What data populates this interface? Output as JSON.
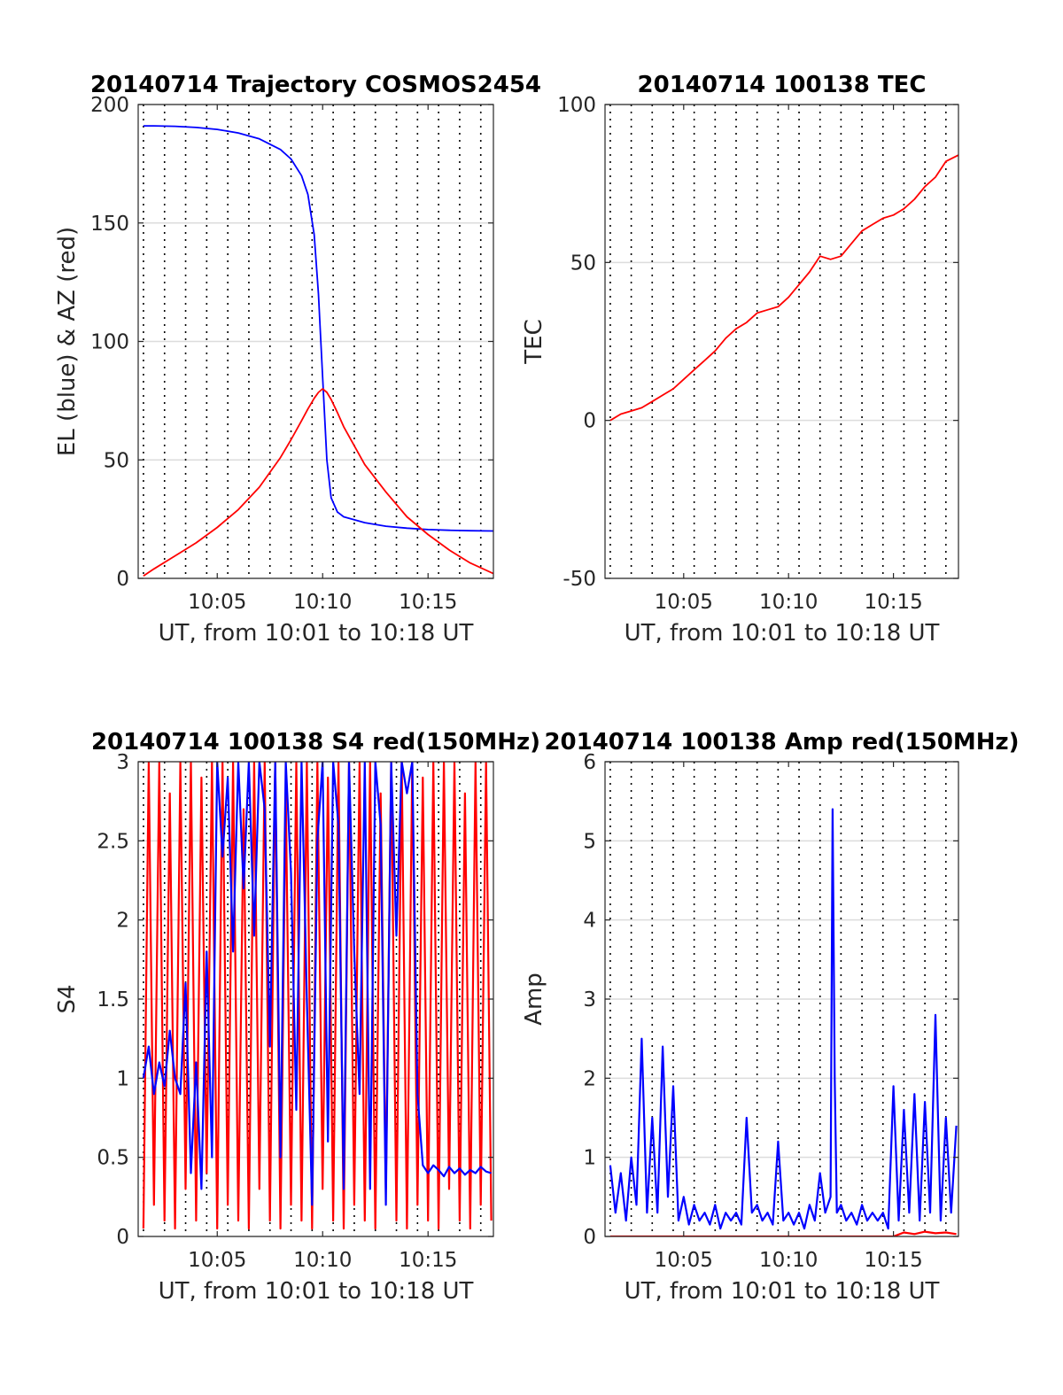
{
  "figure": {
    "xlabel": "UT, from 10:01 to 10:18 UT",
    "xticks": [
      5,
      10,
      15
    ],
    "xtick_labels": [
      "10:05",
      "10:10",
      "10:15"
    ],
    "xlim": [
      1.25,
      18.1
    ]
  },
  "panels": [
    {
      "id": "trajectory",
      "title": "20140714 Trajectory COSMOS2454",
      "ylabel": "EL (blue) & AZ (red)",
      "ylim": [
        0,
        200
      ],
      "yticks": [
        0,
        50,
        100,
        150,
        200
      ],
      "ytick_labels": [
        "0",
        "50",
        "100",
        "150",
        "200"
      ]
    },
    {
      "id": "tec",
      "title": "20140714 100138 TEC",
      "ylabel": "TEC",
      "ylim": [
        -50,
        100
      ],
      "yticks": [
        -50,
        0,
        50,
        100
      ],
      "ytick_labels": [
        "-50",
        "0",
        "50",
        "100"
      ]
    },
    {
      "id": "s4",
      "title": "20140714 100138 S4 red(150MHz)",
      "ylabel": "S4",
      "ylim": [
        0,
        3
      ],
      "yticks": [
        0,
        0.5,
        1,
        1.5,
        2,
        2.5,
        3
      ],
      "ytick_labels": [
        "0",
        "0.5",
        "1",
        "1.5",
        "2",
        "2.5",
        "3"
      ]
    },
    {
      "id": "amp",
      "title": "20140714 100138 Amp red(150MHz)",
      "ylabel": "Amp",
      "ylim": [
        0,
        6
      ],
      "yticks": [
        0,
        1,
        2,
        3,
        4,
        5,
        6
      ],
      "ytick_labels": [
        "0",
        "1",
        "2",
        "3",
        "4",
        "5",
        "6"
      ]
    }
  ],
  "chart_data": [
    {
      "type": "line",
      "title": "20140714 Trajectory COSMOS2454",
      "xlabel": "UT, from 10:01 to 10:18 UT",
      "ylabel": "EL (blue) & AZ (red)",
      "ylim": [
        0,
        200
      ],
      "grid": "vertical dotted + horizontal",
      "colors": {
        "EL": "#0000ff",
        "AZ": "#ff0000"
      },
      "x": [
        1.5,
        2,
        3,
        4,
        5,
        6,
        7,
        8,
        8.5,
        9,
        9.3,
        9.6,
        9.8,
        10,
        10.2,
        10.4,
        10.7,
        11,
        12,
        13,
        14,
        15,
        16,
        17,
        18.1
      ],
      "series": [
        {
          "values": [
            191,
            191,
            190.8,
            190.3,
            189.5,
            188,
            185.5,
            181,
            177,
            170,
            162,
            145,
            120,
            85,
            50,
            34,
            28,
            26,
            23.5,
            22,
            21.2,
            20.6,
            20.3,
            20.1,
            20
          ]
        },
        {
          "values": [
            1,
            4,
            9.5,
            15,
            21.5,
            29,
            38.5,
            51,
            58.5,
            66.5,
            71.5,
            76,
            78.5,
            80,
            78.5,
            75.5,
            70,
            64,
            48,
            36.5,
            26,
            18.5,
            12,
            6.5,
            2
          ]
        }
      ]
    },
    {
      "type": "line",
      "title": "20140714 100138 TEC",
      "xlabel": "UT, from 10:01 to 10:18 UT",
      "ylabel": "TEC",
      "ylim": [
        -50,
        100
      ],
      "grid": "vertical dotted + horizontal",
      "colors": {
        "TEC": "#ff0000"
      },
      "x": [
        1.5,
        2,
        2.5,
        3,
        3.5,
        4,
        4.5,
        5,
        5.5,
        6,
        6.5,
        7,
        7.5,
        8,
        8.5,
        9,
        9.5,
        10,
        10.5,
        11,
        11.5,
        12,
        12.5,
        13,
        13.5,
        14,
        14.5,
        15,
        15.5,
        16,
        16.5,
        17,
        17.5,
        18.1
      ],
      "series": [
        {
          "values": [
            0,
            2,
            3,
            4,
            6,
            8,
            10,
            13,
            16,
            19,
            22,
            26,
            29,
            31,
            34,
            35,
            36,
            39,
            43,
            47,
            52,
            51,
            52,
            56,
            60,
            62,
            64,
            65,
            67,
            70,
            74,
            77,
            82,
            84
          ]
        }
      ]
    },
    {
      "type": "line",
      "title": "20140714 100138 S4 red(150MHz)",
      "xlabel": "UT, from 10:01 to 10:18 UT",
      "ylabel": "S4",
      "ylim": [
        0,
        3
      ],
      "grid": "vertical dotted + horizontal",
      "colors": {
        "red": "#ff0000",
        "blue": "#0000ff"
      },
      "series": [
        {
          "x": [
            1.5,
            1.75,
            2.0,
            2.25,
            2.5,
            2.75,
            3.0,
            3.25,
            3.5,
            3.75,
            4.0,
            4.25,
            4.5,
            4.75,
            5.0,
            5.25,
            5.5,
            5.75,
            6.0,
            6.25,
            6.5,
            6.75,
            7.0,
            7.25,
            7.5,
            7.75,
            8.0,
            8.25,
            8.5,
            8.75,
            9.0,
            9.25,
            9.5,
            9.75,
            10.0,
            10.25,
            10.5,
            10.75,
            11.0,
            11.25,
            11.5,
            11.75,
            12.0,
            12.25,
            12.5,
            12.75,
            13.0,
            13.25,
            13.5,
            13.75,
            14.0,
            14.25,
            14.5,
            14.75,
            15.0,
            15.25,
            15.5,
            15.75,
            16.0,
            16.25,
            16.5,
            16.75,
            17.0,
            17.25,
            17.5,
            17.75,
            18.0
          ],
          "values": [
            0.05,
            3,
            0.2,
            3,
            0.1,
            2.8,
            0.05,
            3,
            0.3,
            3,
            0.1,
            2.9,
            0.4,
            3,
            0.05,
            3,
            0.2,
            3,
            0.1,
            2.7,
            0.05,
            3,
            0.3,
            3,
            0.1,
            3,
            0.05,
            2.8,
            0.2,
            3,
            0.1,
            3,
            0.05,
            3,
            0.3,
            2.9,
            0.1,
            3,
            0.05,
            3,
            0.2,
            3,
            0.1,
            3,
            0.05,
            2.8,
            0.3,
            3,
            0.1,
            3,
            0.05,
            3,
            0.2,
            2.9,
            0.1,
            3,
            0.05,
            3,
            0.3,
            3,
            0.1,
            2.8,
            0.05,
            3,
            0.2,
            3,
            0.1
          ]
        },
        {
          "x": [
            1.5,
            1.75,
            2.0,
            2.25,
            2.5,
            2.75,
            3.0,
            3.25,
            3.5,
            3.75,
            4.0,
            4.25,
            4.5,
            4.75,
            5.0,
            5.25,
            5.5,
            5.75,
            6.0,
            6.25,
            6.5,
            6.75,
            7.0,
            7.25,
            7.5,
            7.75,
            8.0,
            8.25,
            8.5,
            8.75,
            9.0,
            9.25,
            9.5,
            9.75,
            10.0,
            10.25,
            10.5,
            10.75,
            11.0,
            11.25,
            11.5,
            11.75,
            12.0,
            12.25,
            12.5,
            12.75,
            13.0,
            13.25,
            13.5,
            13.75,
            14.0,
            14.25,
            14.5,
            14.75,
            15.0,
            15.25,
            15.5,
            15.75,
            16.0,
            16.25,
            16.5,
            16.75,
            17.0,
            17.25,
            17.5,
            17.75,
            18.0
          ],
          "values": [
            1.0,
            1.2,
            0.9,
            1.1,
            0.95,
            1.3,
            1.0,
            0.9,
            1.6,
            0.4,
            1.1,
            0.3,
            1.8,
            0.5,
            3,
            2.4,
            2.9,
            1.8,
            3,
            2.2,
            3,
            1.9,
            3,
            2.7,
            1.2,
            3,
            0.5,
            3,
            2.3,
            0.8,
            3,
            1.5,
            0.2,
            2.5,
            3,
            0.6,
            3,
            2.6,
            0.3,
            3,
            1.8,
            0.9,
            3,
            0.3,
            3,
            2.6,
            0.2,
            3,
            1.9,
            3,
            2.8,
            3,
            0.9,
            0.45,
            0.4,
            0.45,
            0.42,
            0.38,
            0.44,
            0.4,
            0.43,
            0.39,
            0.42,
            0.4,
            0.44,
            0.41,
            0.4
          ]
        }
      ]
    },
    {
      "type": "line",
      "title": "20140714 100138 Amp red(150MHz)",
      "xlabel": "UT, from 10:01 to 10:18 UT",
      "ylabel": "Amp",
      "ylim": [
        0,
        6
      ],
      "grid": "vertical dotted + horizontal",
      "colors": {
        "blue": "#0000ff",
        "red": "#ff0000"
      },
      "series": [
        {
          "x": [
            1.5,
            1.75,
            2.0,
            2.25,
            2.5,
            2.75,
            3.0,
            3.25,
            3.5,
            3.75,
            4.0,
            4.25,
            4.5,
            4.75,
            5.0,
            5.25,
            5.5,
            5.75,
            6.0,
            6.25,
            6.5,
            6.75,
            7.0,
            7.25,
            7.5,
            7.75,
            8.0,
            8.25,
            8.5,
            8.75,
            9.0,
            9.25,
            9.5,
            9.75,
            10.0,
            10.25,
            10.5,
            10.75,
            11.0,
            11.25,
            11.5,
            11.75,
            12.0,
            12.1,
            12.2,
            12.3,
            12.5,
            12.75,
            13.0,
            13.25,
            13.5,
            13.75,
            14.0,
            14.25,
            14.5,
            14.75,
            15.0,
            15.25,
            15.5,
            15.75,
            16.0,
            16.25,
            16.5,
            16.75,
            17.0,
            17.25,
            17.5,
            17.75,
            18.0
          ],
          "values": [
            0.9,
            0.3,
            0.8,
            0.2,
            1.0,
            0.4,
            2.5,
            0.3,
            1.5,
            0.3,
            2.4,
            0.5,
            1.9,
            0.2,
            0.5,
            0.15,
            0.4,
            0.2,
            0.3,
            0.15,
            0.4,
            0.1,
            0.3,
            0.2,
            0.3,
            0.15,
            1.5,
            0.3,
            0.4,
            0.2,
            0.3,
            0.15,
            1.2,
            0.2,
            0.3,
            0.15,
            0.3,
            0.1,
            0.4,
            0.2,
            0.8,
            0.3,
            0.5,
            5.4,
            2.0,
            0.3,
            0.4,
            0.2,
            0.3,
            0.15,
            0.4,
            0.2,
            0.3,
            0.2,
            0.3,
            0.1,
            1.9,
            0.2,
            1.6,
            0.3,
            1.8,
            0.2,
            1.7,
            0.3,
            2.8,
            0.2,
            1.5,
            0.3,
            1.4
          ]
        },
        {
          "x": [
            1.5,
            15.0,
            15.5,
            16.0,
            16.5,
            17.0,
            17.5,
            18.0
          ],
          "values": [
            0,
            0,
            0.05,
            0.03,
            0.06,
            0.04,
            0.05,
            0.03
          ]
        }
      ]
    }
  ]
}
